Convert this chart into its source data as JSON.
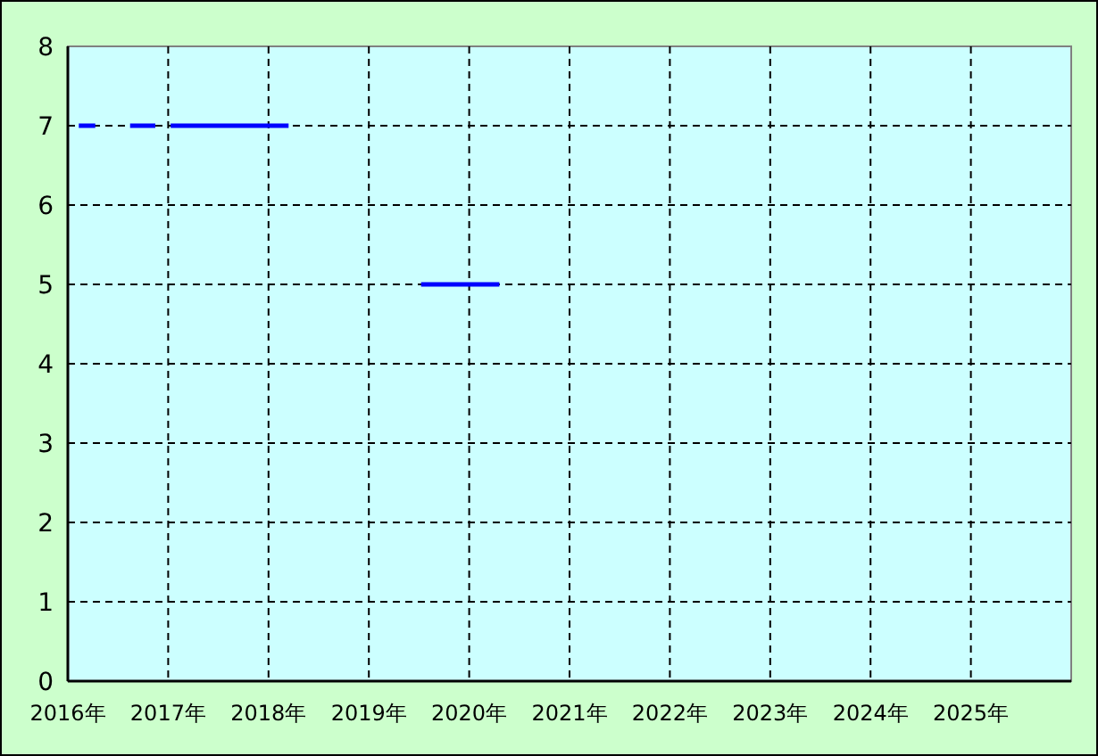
{
  "chart_data": {
    "type": "line",
    "xlim": [
      "2016",
      "2026"
    ],
    "ylim": [
      0,
      8
    ],
    "yticks": [
      0,
      1,
      2,
      3,
      4,
      5,
      6,
      7,
      8
    ],
    "xticks": [
      {
        "value": "2016",
        "label": "2016年"
      },
      {
        "value": "2017",
        "label": "2017年"
      },
      {
        "value": "2018",
        "label": "2018年"
      },
      {
        "value": "2019",
        "label": "2019年"
      },
      {
        "value": "2020",
        "label": "2020年"
      },
      {
        "value": "2021",
        "label": "2021年"
      },
      {
        "value": "2022",
        "label": "2022年"
      },
      {
        "value": "2023",
        "label": "2023年"
      },
      {
        "value": "2024",
        "label": "2024年"
      },
      {
        "value": "2025",
        "label": "2025年"
      }
    ],
    "grid": true,
    "line_style": "solid",
    "marker": "none",
    "series": [
      {
        "color": "#0000ff",
        "x": [
          "2016-02-10",
          "2016-04-10"
        ],
        "values": [
          7,
          7
        ]
      },
      {
        "color": "#0000ff",
        "x": [
          "2016-08-15",
          "2016-11-15"
        ],
        "values": [
          7,
          7
        ]
      },
      {
        "color": "#0000ff",
        "x": [
          "2017-01-10",
          "2018-03-15"
        ],
        "values": [
          7,
          7
        ]
      },
      {
        "color": "#0000ff",
        "x": [
          "2019-07-10",
          "2020-04-20"
        ],
        "values": [
          5,
          5
        ]
      }
    ]
  }
}
